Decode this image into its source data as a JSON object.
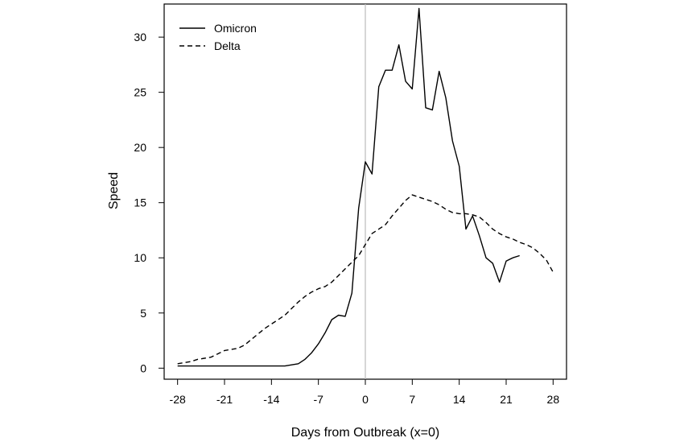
{
  "chart_data": {
    "type": "line",
    "xlabel": "Days from Outbreak (x=0)",
    "ylabel": "Speed",
    "xlim": [
      -30,
      30
    ],
    "ylim": [
      -1,
      33
    ],
    "x_ticks": [
      -28,
      -21,
      -14,
      -7,
      0,
      7,
      14,
      21,
      28
    ],
    "x_tick_labels": [
      "-28",
      "-21",
      "-14",
      "-7",
      "0",
      "7",
      "14",
      "21",
      "28"
    ],
    "y_ticks": [
      0,
      5,
      10,
      15,
      20,
      25,
      30
    ],
    "y_tick_labels": [
      "0",
      "5",
      "10",
      "15",
      "20",
      "25",
      "30"
    ],
    "reference_line_x": 0,
    "grid": false,
    "legend_position": "top-left",
    "series": [
      {
        "name": "Omicron",
        "style": "solid",
        "color": "#000000",
        "x": [
          -28,
          -27,
          -26,
          -25,
          -24,
          -23,
          -22,
          -21,
          -20,
          -19,
          -18,
          -17,
          -16,
          -15,
          -14,
          -13,
          -12,
          -11,
          -10,
          -9,
          -8,
          -7,
          -6,
          -5,
          -4,
          -3,
          -2,
          -1,
          0,
          1,
          2,
          3,
          4,
          5,
          6,
          7,
          8,
          9,
          10,
          11,
          12,
          13,
          14,
          15,
          16,
          17,
          18,
          19,
          20,
          21,
          22,
          23
        ],
        "y": [
          0.2,
          0.2,
          0.2,
          0.2,
          0.2,
          0.2,
          0.2,
          0.2,
          0.2,
          0.2,
          0.2,
          0.2,
          0.2,
          0.2,
          0.2,
          0.2,
          0.2,
          0.3,
          0.4,
          0.8,
          1.4,
          2.2,
          3.2,
          4.4,
          4.8,
          4.7,
          6.8,
          14.5,
          18.7,
          17.6,
          25.5,
          27.0,
          27.0,
          29.3,
          26.0,
          25.3,
          32.6,
          23.6,
          23.4,
          26.9,
          24.5,
          20.6,
          18.3,
          12.6,
          13.8,
          12.0,
          10.0,
          9.5,
          7.8,
          9.7,
          10.0,
          10.2
        ],
        "values": [
          0.2,
          0.2,
          0.2,
          0.2,
          0.2,
          0.2,
          0.2,
          0.2,
          0.2,
          0.2,
          0.2,
          0.2,
          0.2,
          0.2,
          0.2,
          0.2,
          0.2,
          0.3,
          0.4,
          0.8,
          1.4,
          2.2,
          3.2,
          4.4,
          4.8,
          4.7,
          6.8,
          14.5,
          18.7,
          17.6,
          25.5,
          27.0,
          27.0,
          29.3,
          26.0,
          25.3,
          32.6,
          23.6,
          23.4,
          26.9,
          24.5,
          20.6,
          18.3,
          12.6,
          13.8,
          12.0,
          10.0,
          9.5,
          7.8,
          9.7,
          10.0,
          10.2
        ]
      },
      {
        "name": "Delta",
        "style": "dashed",
        "color": "#000000",
        "x": [
          -28,
          -27,
          -26,
          -25,
          -24,
          -23,
          -22,
          -21,
          -20,
          -19,
          -18,
          -17,
          -16,
          -15,
          -14,
          -13,
          -12,
          -11,
          -10,
          -9,
          -8,
          -7,
          -6,
          -5,
          -4,
          -3,
          -2,
          -1,
          0,
          1,
          2,
          3,
          4,
          5,
          6,
          7,
          8,
          9,
          10,
          11,
          12,
          13,
          14,
          15,
          16,
          17,
          18,
          19,
          20,
          21,
          22,
          23,
          24,
          25,
          26,
          27,
          28
        ],
        "y": [
          0.4,
          0.5,
          0.6,
          0.8,
          0.9,
          1.0,
          1.3,
          1.6,
          1.7,
          1.8,
          2.1,
          2.6,
          3.1,
          3.6,
          4.0,
          4.4,
          4.8,
          5.4,
          6.0,
          6.5,
          6.9,
          7.2,
          7.4,
          7.8,
          8.4,
          9.0,
          9.6,
          10.2,
          11.2,
          12.2,
          12.6,
          13.0,
          13.8,
          14.5,
          15.2,
          15.7,
          15.5,
          15.3,
          15.1,
          14.8,
          14.4,
          14.1,
          14.0,
          14.0,
          13.9,
          13.7,
          13.2,
          12.6,
          12.2,
          11.9,
          11.7,
          11.4,
          11.2,
          10.9,
          10.4,
          9.8,
          8.7
        ],
        "values": [
          0.4,
          0.5,
          0.6,
          0.8,
          0.9,
          1.0,
          1.3,
          1.6,
          1.7,
          1.8,
          2.1,
          2.6,
          3.1,
          3.6,
          4.0,
          4.4,
          4.8,
          5.4,
          6.0,
          6.5,
          6.9,
          7.2,
          7.4,
          7.8,
          8.4,
          9.0,
          9.6,
          10.2,
          11.2,
          12.2,
          12.6,
          13.0,
          13.8,
          14.5,
          15.2,
          15.7,
          15.5,
          15.3,
          15.1,
          14.8,
          14.4,
          14.1,
          14.0,
          14.0,
          13.9,
          13.7,
          13.2,
          12.6,
          12.2,
          11.9,
          11.7,
          11.4,
          11.2,
          10.9,
          10.4,
          9.8,
          8.7
        ]
      }
    ]
  }
}
